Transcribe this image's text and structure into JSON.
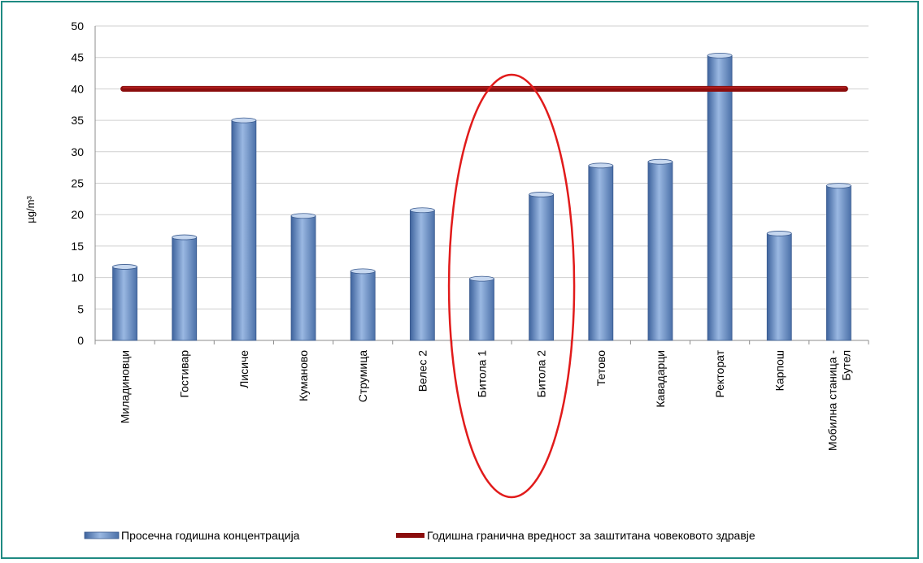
{
  "chart_data": {
    "type": "bar",
    "categories": [
      "Миладиновци",
      "Гостивар",
      "Лисиче",
      "Куманово",
      "Струмица",
      "Велес 2",
      "Битола 1",
      "Битола 2",
      "Тетово",
      "Кавадарци",
      "Ректорат",
      "Карпош",
      "Мобилна станица - Бутел"
    ],
    "series": [
      {
        "name": "Просечна годишна концентрација",
        "type": "bar",
        "values": [
          11.7,
          16.4,
          35,
          19.8,
          11,
          20.7,
          9.8,
          23.2,
          27.8,
          28.4,
          45.3,
          17,
          24.6
        ],
        "color": "#6f93c8"
      },
      {
        "name": "Годишна гранична вредност за заштитана човековото здравје",
        "type": "line",
        "values": [
          40,
          40,
          40,
          40,
          40,
          40,
          40,
          40,
          40,
          40,
          40,
          40,
          40
        ],
        "color": "#8b0d0d"
      }
    ],
    "ylabel": "µg/m³",
    "xlabel": "",
    "ylim": [
      0,
      50
    ],
    "yticks": [
      0,
      5,
      10,
      15,
      20,
      25,
      30,
      35,
      40,
      45,
      50
    ],
    "grid": true,
    "legend": "bottom",
    "highlight": {
      "shape": "ellipse",
      "color": "#e11b1b",
      "categories": [
        "Битола 1",
        "Битола 2"
      ]
    }
  }
}
